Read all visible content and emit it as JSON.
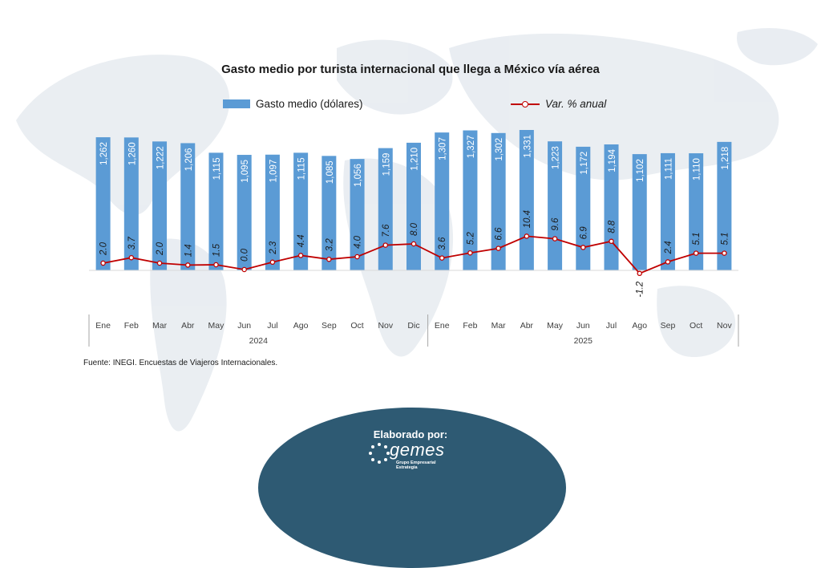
{
  "chart_data": {
    "type": "bar",
    "title": "Gasto medio por turista internacional que llega a México vía aérea",
    "categories": [
      "Ene",
      "Feb",
      "Mar",
      "Abr",
      "May",
      "Jun",
      "Jul",
      "Ago",
      "Sep",
      "Oct",
      "Nov",
      "Dic",
      "Ene",
      "Feb",
      "Mar",
      "Abr",
      "May",
      "Jun",
      "Jul",
      "Ago",
      "Sep",
      "Oct",
      "Nov"
    ],
    "groups": [
      {
        "label": "2024",
        "count": 12
      },
      {
        "label": "2025",
        "count": 11
      }
    ],
    "series": [
      {
        "name": "Gasto medio (dólares)",
        "type": "bar",
        "color": "#5b9bd5",
        "values": [
          1262,
          1260,
          1222,
          1206,
          1115,
          1095,
          1097,
          1115,
          1085,
          1056,
          1159,
          1210,
          1307,
          1327,
          1302,
          1331,
          1223,
          1172,
          1194,
          1102,
          1111,
          1110,
          1218
        ],
        "labels": [
          "1,262",
          "1,260",
          "1,222",
          "1,206",
          "1,115",
          "1,095",
          "1,097",
          "1,115",
          "1,085",
          "1,056",
          "1,159",
          "1,210",
          "1,307",
          "1,327",
          "1,302",
          "1,331",
          "1,223",
          "1,172",
          "1,194",
          "1,102",
          "1,111",
          "1,110",
          "1,218"
        ]
      },
      {
        "name": "Var. % anual",
        "type": "line",
        "color": "#c00000",
        "values": [
          2.0,
          3.7,
          2.0,
          1.4,
          1.5,
          0.0,
          2.3,
          4.4,
          3.2,
          4.0,
          7.6,
          8.0,
          3.6,
          5.2,
          6.6,
          10.4,
          9.6,
          6.9,
          8.8,
          -1.2,
          2.4,
          5.1,
          5.1
        ],
        "labels": [
          "2.0",
          "3.7",
          "2.0",
          "1.4",
          "1.5",
          "0.0",
          "2.3",
          "4.4",
          "3.2",
          "4.0",
          "7.6",
          "8.0",
          "3.6",
          "5.2",
          "6.6",
          "10.4",
          "9.6",
          "6.9",
          "8.8",
          "-1.2",
          "2.4",
          "5.1",
          "5.1"
        ]
      }
    ],
    "legend": "top",
    "grid": false
  },
  "source": "Fuente: INEGI. Encuestas de Viajeros Internacionales.",
  "credit": {
    "label": "Elaborado por:",
    "logo_name": "gemes",
    "logo_subtitle": "Grupo Empresarial Estrategia"
  }
}
